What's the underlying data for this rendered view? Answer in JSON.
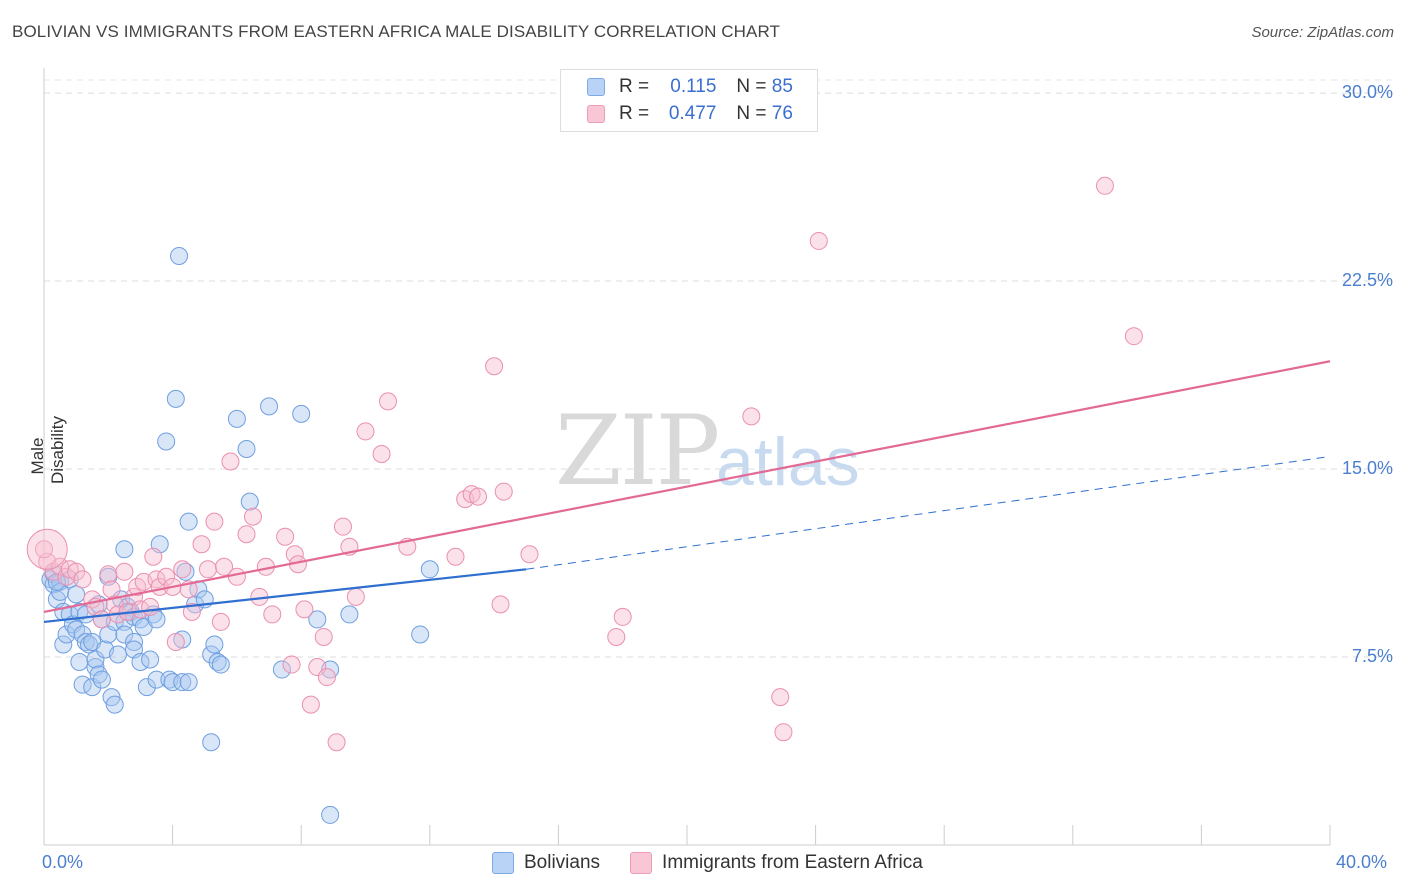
{
  "title": "BOLIVIAN VS IMMIGRANTS FROM EASTERN AFRICA MALE DISABILITY CORRELATION CHART",
  "source": "Source: ZipAtlas.com",
  "watermark": {
    "zip": "ZIP",
    "atlas": "atlas"
  },
  "legend": {
    "r_label": "R =",
    "n_label": "N =",
    "rows": [
      {
        "r": "0.115",
        "n": "85",
        "color": "#b8d3f5"
      },
      {
        "r": "0.477",
        "n": "76",
        "color": "#f9c6d6"
      }
    ]
  },
  "bottom_legend": [
    "Bolivians",
    "Immigrants from Eastern Africa"
  ],
  "colors": {
    "blue_fill": "#a9c8f0",
    "blue_stroke": "#6f9fe0",
    "blue_line": "#2f6fcf",
    "pink_fill": "#f7bfd0",
    "pink_stroke": "#ea8fb0",
    "pink_line": "#e26a95",
    "tick_text": "#4a7fd0"
  },
  "chart_data": {
    "type": "scatter",
    "title": "BOLIVIAN VS IMMIGRANTS FROM EASTERN AFRICA MALE DISABILITY CORRELATION CHART",
    "xlabel": "",
    "ylabel": "Male Disability",
    "xlim": [
      0,
      40
    ],
    "ylim": [
      0,
      31.0
    ],
    "x_tick_labels": [
      "0.0%",
      "40.0%"
    ],
    "y_ticks": [
      7.5,
      15.0,
      22.5,
      30.0
    ],
    "y_tick_labels": [
      "7.5%",
      "15.0%",
      "22.5%",
      "30.0%"
    ],
    "grid": true,
    "legend_position": "top-center",
    "series": [
      {
        "name": "Bolivians",
        "r": 0.115,
        "n": 85,
        "trend": {
          "x0": 0.0,
          "y0": 8.9,
          "x1": 15.0,
          "y1": 11.0,
          "dashed_to_x": 40.0,
          "dashed_to_y": 15.5
        },
        "points": [
          [
            0.2,
            10.6
          ],
          [
            0.3,
            10.8
          ],
          [
            0.3,
            10.4
          ],
          [
            0.4,
            9.8
          ],
          [
            0.5,
            10.5
          ],
          [
            0.5,
            10.1
          ],
          [
            0.6,
            8.0
          ],
          [
            0.6,
            9.3
          ],
          [
            0.7,
            8.4
          ],
          [
            0.8,
            10.6
          ],
          [
            0.8,
            9.2
          ],
          [
            0.9,
            8.8
          ],
          [
            1.0,
            10.0
          ],
          [
            1.0,
            8.6
          ],
          [
            1.1,
            9.3
          ],
          [
            1.1,
            7.3
          ],
          [
            1.2,
            8.4
          ],
          [
            1.2,
            6.4
          ],
          [
            1.3,
            8.1
          ],
          [
            1.3,
            9.2
          ],
          [
            1.4,
            8.0
          ],
          [
            1.5,
            6.3
          ],
          [
            1.5,
            8.1
          ],
          [
            1.6,
            7.1
          ],
          [
            1.6,
            7.4
          ],
          [
            1.7,
            6.8
          ],
          [
            1.7,
            9.6
          ],
          [
            1.8,
            6.6
          ],
          [
            1.8,
            9.0
          ],
          [
            1.9,
            7.8
          ],
          [
            2.0,
            10.7
          ],
          [
            2.0,
            8.4
          ],
          [
            2.1,
            5.9
          ],
          [
            2.2,
            5.6
          ],
          [
            2.2,
            8.9
          ],
          [
            2.3,
            7.6
          ],
          [
            2.4,
            9.8
          ],
          [
            2.5,
            11.8
          ],
          [
            2.5,
            8.9
          ],
          [
            2.5,
            8.4
          ],
          [
            2.6,
            9.5
          ],
          [
            2.7,
            9.3
          ],
          [
            2.8,
            8.1
          ],
          [
            2.8,
            9.1
          ],
          [
            2.8,
            7.8
          ],
          [
            3.0,
            9.0
          ],
          [
            3.0,
            7.3
          ],
          [
            3.1,
            8.7
          ],
          [
            3.2,
            6.3
          ],
          [
            3.3,
            7.4
          ],
          [
            3.4,
            9.2
          ],
          [
            3.5,
            9.0
          ],
          [
            3.5,
            6.6
          ],
          [
            3.6,
            12.0
          ],
          [
            3.8,
            16.1
          ],
          [
            3.9,
            6.6
          ],
          [
            4.0,
            6.5
          ],
          [
            4.1,
            17.8
          ],
          [
            4.2,
            23.5
          ],
          [
            4.3,
            6.5
          ],
          [
            4.3,
            8.2
          ],
          [
            4.4,
            10.9
          ],
          [
            4.5,
            6.5
          ],
          [
            4.5,
            12.9
          ],
          [
            4.7,
            9.6
          ],
          [
            4.8,
            10.2
          ],
          [
            5.0,
            9.8
          ],
          [
            5.2,
            7.6
          ],
          [
            5.2,
            4.1
          ],
          [
            5.3,
            8.0
          ],
          [
            5.4,
            7.3
          ],
          [
            5.5,
            7.2
          ],
          [
            6.0,
            17.0
          ],
          [
            6.3,
            15.8
          ],
          [
            6.4,
            13.7
          ],
          [
            7.0,
            17.5
          ],
          [
            7.4,
            7.0
          ],
          [
            8.0,
            17.2
          ],
          [
            8.5,
            9.0
          ],
          [
            8.9,
            7.0
          ],
          [
            8.9,
            1.2
          ],
          [
            9.5,
            9.2
          ],
          [
            11.7,
            8.4
          ],
          [
            12.0,
            11.0
          ],
          [
            0.4,
            10.5
          ]
        ]
      },
      {
        "name": "Immigrants from Eastern Africa",
        "r": 0.477,
        "n": 76,
        "trend": {
          "x0": 0.0,
          "y0": 9.3,
          "x1": 40.0,
          "y1": 19.3
        },
        "points": [
          [
            0.1,
            11.3
          ],
          [
            0.3,
            10.9
          ],
          [
            0.5,
            11.1
          ],
          [
            0.7,
            10.7
          ],
          [
            0.8,
            11.0
          ],
          [
            1.0,
            10.9
          ],
          [
            1.2,
            10.6
          ],
          [
            1.5,
            9.8
          ],
          [
            1.6,
            9.5
          ],
          [
            1.8,
            9.0
          ],
          [
            2.0,
            10.8
          ],
          [
            2.1,
            10.2
          ],
          [
            2.2,
            9.6
          ],
          [
            2.3,
            9.2
          ],
          [
            2.5,
            10.9
          ],
          [
            2.6,
            9.3
          ],
          [
            2.8,
            9.9
          ],
          [
            2.9,
            10.3
          ],
          [
            3.0,
            9.4
          ],
          [
            3.1,
            10.5
          ],
          [
            3.3,
            9.5
          ],
          [
            3.4,
            11.5
          ],
          [
            3.5,
            10.6
          ],
          [
            3.6,
            10.3
          ],
          [
            3.8,
            10.7
          ],
          [
            4.0,
            10.3
          ],
          [
            4.1,
            8.1
          ],
          [
            4.3,
            11.0
          ],
          [
            4.5,
            10.2
          ],
          [
            4.6,
            9.3
          ],
          [
            4.9,
            12.0
          ],
          [
            5.1,
            11.0
          ],
          [
            5.3,
            12.9
          ],
          [
            5.5,
            8.9
          ],
          [
            5.6,
            11.1
          ],
          [
            5.8,
            15.3
          ],
          [
            6.0,
            10.7
          ],
          [
            6.3,
            12.4
          ],
          [
            6.5,
            13.1
          ],
          [
            6.7,
            9.9
          ],
          [
            6.9,
            11.1
          ],
          [
            7.1,
            9.2
          ],
          [
            7.5,
            12.3
          ],
          [
            7.7,
            7.2
          ],
          [
            7.8,
            11.6
          ],
          [
            7.9,
            11.2
          ],
          [
            8.1,
            9.4
          ],
          [
            8.3,
            5.6
          ],
          [
            8.5,
            7.1
          ],
          [
            8.8,
            6.7
          ],
          [
            8.7,
            8.3
          ],
          [
            9.1,
            4.1
          ],
          [
            9.3,
            12.7
          ],
          [
            9.5,
            11.9
          ],
          [
            9.7,
            9.9
          ],
          [
            10.0,
            16.5
          ],
          [
            10.5,
            15.6
          ],
          [
            10.7,
            17.7
          ],
          [
            11.3,
            11.9
          ],
          [
            12.8,
            11.5
          ],
          [
            13.1,
            13.8
          ],
          [
            13.3,
            14.0
          ],
          [
            13.5,
            13.9
          ],
          [
            14.0,
            19.1
          ],
          [
            14.2,
            9.6
          ],
          [
            14.3,
            14.1
          ],
          [
            15.1,
            11.6
          ],
          [
            17.8,
            8.3
          ],
          [
            18.0,
            9.1
          ],
          [
            22.0,
            17.1
          ],
          [
            22.9,
            5.9
          ],
          [
            23.0,
            4.5
          ],
          [
            24.1,
            24.1
          ],
          [
            33.0,
            26.3
          ],
          [
            33.9,
            20.3
          ],
          [
            0.0,
            11.8
          ]
        ]
      }
    ]
  }
}
